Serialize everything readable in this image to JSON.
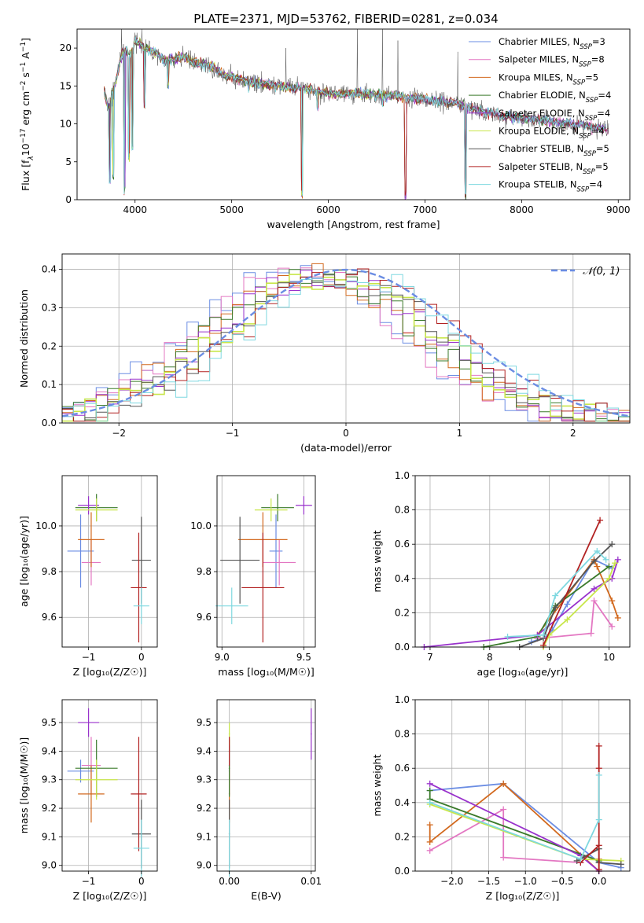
{
  "figure": {
    "title": "PLATE=2371, MJD=53762, FIBERID=0281, z=0.034"
  },
  "models": [
    {
      "label": "Chabrier MILES, N",
      "sub": "SSP",
      "eq": "=3",
      "color": "#6b8de3"
    },
    {
      "label": "Salpeter MILES, N",
      "sub": "SSP",
      "eq": "=8",
      "color": "#e377c2"
    },
    {
      "label": "Kroupa MILES, N",
      "sub": "SSP",
      "eq": "=5",
      "color": "#d2691e"
    },
    {
      "label": "Chabrier ELODIE, N",
      "sub": "SSP",
      "eq": "=4",
      "color": "#3a7a2a"
    },
    {
      "label": "Salpeter ELODIE, N",
      "sub": "SSP",
      "eq": "=4",
      "color": "#9932cc"
    },
    {
      "label": "Kroupa ELODIE, N",
      "sub": "SSP",
      "eq": "=4",
      "color": "#c8e64a"
    },
    {
      "label": "Chabrier STELIB, N",
      "sub": "SSP",
      "eq": "=5",
      "color": "#555555"
    },
    {
      "label": "Salpeter STELIB, N",
      "sub": "SSP",
      "eq": "=5",
      "color": "#b22222"
    },
    {
      "label": "Kroupa STELIB, N",
      "sub": "SSP",
      "eq": "=4",
      "color": "#7fd8e0"
    }
  ],
  "chart_data": [
    {
      "id": "spectrum",
      "type": "line",
      "title": "PLATE=2371, MJD=53762, FIBERID=0281, z=0.034",
      "xlabel": "wavelength [Angstrom, rest frame]",
      "ylabel_parts": [
        "Flux [f",
        "λ",
        "10",
        "−17",
        " erg cm",
        "−2",
        " s",
        "−1",
        " A",
        "−1",
        "]"
      ],
      "xlim": [
        3400,
        9120
      ],
      "ylim": [
        0,
        22.5
      ],
      "xticks": [
        4000,
        5000,
        6000,
        7000,
        8000,
        9000
      ],
      "yticks": [
        0,
        5,
        10,
        15,
        20
      ],
      "anchors": [
        [
          3680,
          14.5
        ],
        [
          3720,
          12.0
        ],
        [
          3800,
          15.5
        ],
        [
          3850,
          18.5
        ],
        [
          3900,
          20.0
        ],
        [
          3950,
          19.0
        ],
        [
          4000,
          21.0
        ],
        [
          4100,
          20.0
        ],
        [
          4200,
          19.5
        ],
        [
          4300,
          18.5
        ],
        [
          4400,
          18.5
        ],
        [
          4500,
          18.8
        ],
        [
          4600,
          18.3
        ],
        [
          4700,
          17.8
        ],
        [
          4800,
          17.5
        ],
        [
          4900,
          16.5
        ],
        [
          5000,
          16.2
        ],
        [
          5200,
          15.5
        ],
        [
          5500,
          15.0
        ],
        [
          5800,
          14.5
        ],
        [
          6000,
          14.0
        ],
        [
          6300,
          14.0
        ],
        [
          6600,
          13.8
        ],
        [
          7000,
          13.2
        ],
        [
          7300,
          12.8
        ],
        [
          7500,
          12.0
        ],
        [
          7800,
          11.0
        ],
        [
          8200,
          10.5
        ],
        [
          8500,
          10.0
        ],
        [
          8900,
          9.3
        ]
      ],
      "absorption_dips": [
        [
          3735,
          2.0
        ],
        [
          3775,
          2.5
        ],
        [
          3890,
          0.5
        ],
        [
          3935,
          5.0
        ],
        [
          3970,
          6.5
        ],
        [
          4102,
          12.0
        ],
        [
          4340,
          14.5
        ],
        [
          5175,
          14.0
        ],
        [
          5730,
          0.0
        ],
        [
          5890,
          11.5
        ],
        [
          6563,
          12.0
        ],
        [
          6800,
          0.0
        ],
        [
          7420,
          0.0
        ]
      ],
      "emission_spikes": [
        [
          3860,
          22.5
        ],
        [
          4070,
          22.5
        ],
        [
          5560,
          20.0
        ],
        [
          6300,
          22.5
        ],
        [
          6560,
          22.5
        ],
        [
          6720,
          21.0
        ],
        [
          7340,
          19.5
        ]
      ]
    },
    {
      "id": "residual-histogram",
      "type": "bar",
      "xlabel": "(data-model)/error",
      "ylabel": "Normed distribution",
      "xlim": [
        -2.5,
        2.5
      ],
      "ylim": [
        0,
        0.44
      ],
      "xticks": [
        -2,
        -1,
        0,
        1,
        2
      ],
      "yticks": [
        0.0,
        0.1,
        0.2,
        0.3,
        0.4
      ],
      "bin_width": 0.1,
      "reference": {
        "name": "𝒩(0, 1)",
        "mean": 0,
        "sigma": 1,
        "color": "#6b8de3"
      }
    },
    {
      "id": "age-vs-z",
      "type": "scatter",
      "xlabel": "Z [log₁₀(Z/Z☉)]",
      "ylabel": "age  [log₁₀(age/yr)]",
      "xlim": [
        -1.5,
        0.3
      ],
      "ylim": [
        9.47,
        10.22
      ],
      "xticks": [
        -1,
        0
      ],
      "yticks": [
        9.6,
        9.8,
        10.0
      ],
      "points": [
        {
          "x": -1.15,
          "y": 9.89,
          "xerr": 0.25,
          "yerr": 0.16,
          "model": 0
        },
        {
          "x": -0.95,
          "y": 9.84,
          "xerr": 0.18,
          "yerr": 0.1,
          "model": 1
        },
        {
          "x": -0.95,
          "y": 9.94,
          "xerr": 0.25,
          "yerr": 0.12,
          "model": 2
        },
        {
          "x": -0.85,
          "y": 10.08,
          "xerr": 0.4,
          "yerr": 0.06,
          "model": 3
        },
        {
          "x": -1.0,
          "y": 10.09,
          "xerr": 0.2,
          "yerr": 0.04,
          "model": 4
        },
        {
          "x": -0.85,
          "y": 10.07,
          "xerr": 0.4,
          "yerr": 0.05,
          "model": 5
        },
        {
          "x": 0.0,
          "y": 9.85,
          "xerr": 0.18,
          "yerr": 0.19,
          "model": 6
        },
        {
          "x": -0.05,
          "y": 9.73,
          "xerr": 0.15,
          "yerr": 0.24,
          "model": 7
        },
        {
          "x": 0.0,
          "y": 9.65,
          "xerr": 0.15,
          "yerr": 0.08,
          "model": 8
        }
      ]
    },
    {
      "id": "age-vs-mass",
      "type": "scatter",
      "xlabel": "mass [log₁₀(M/M☉)]",
      "ylabel": "",
      "xlim": [
        8.97,
        9.57
      ],
      "ylim": [
        9.47,
        10.22
      ],
      "xticks": [
        9.0,
        9.5
      ],
      "yticks": [
        9.6,
        9.8,
        10.0
      ],
      "points": [
        {
          "x": 9.33,
          "y": 9.89,
          "xerr": 0.04,
          "yerr": 0.16,
          "model": 0
        },
        {
          "x": 9.35,
          "y": 9.84,
          "xerr": 0.1,
          "yerr": 0.1,
          "model": 1
        },
        {
          "x": 9.25,
          "y": 9.94,
          "xerr": 0.15,
          "yerr": 0.12,
          "model": 2
        },
        {
          "x": 9.34,
          "y": 10.08,
          "xerr": 0.1,
          "yerr": 0.06,
          "model": 3
        },
        {
          "x": 9.5,
          "y": 10.09,
          "xerr": 0.05,
          "yerr": 0.04,
          "model": 4
        },
        {
          "x": 9.3,
          "y": 10.07,
          "xerr": 0.1,
          "yerr": 0.05,
          "model": 5
        },
        {
          "x": 9.11,
          "y": 9.85,
          "xerr": 0.12,
          "yerr": 0.19,
          "model": 6
        },
        {
          "x": 9.25,
          "y": 9.73,
          "xerr": 0.13,
          "yerr": 0.24,
          "model": 7
        },
        {
          "x": 9.06,
          "y": 9.65,
          "xerr": 0.1,
          "yerr": 0.08,
          "model": 8
        }
      ]
    },
    {
      "id": "weight-vs-age",
      "type": "line",
      "xlabel": "age  [log₁₀(age/yr)]",
      "ylabel": "mass weight",
      "xlim": [
        6.75,
        10.35
      ],
      "ylim": [
        0,
        1
      ],
      "xticks": [
        7,
        8,
        9,
        10
      ],
      "yticks": [
        0.0,
        0.2,
        0.4,
        0.6,
        0.8,
        1.0
      ],
      "series": [
        {
          "model": 0,
          "x": [
            8.7,
            8.95,
            9.05,
            9.3,
            9.75,
            10.05
          ],
          "y": [
            0.03,
            0.06,
            0.1,
            0.25,
            0.51,
            0.46
          ]
        },
        {
          "model": 1,
          "x": [
            8.8,
            9.7,
            9.75,
            10.05
          ],
          "y": [
            0.05,
            0.08,
            0.27,
            0.12
          ]
        },
        {
          "model": 2,
          "x": [
            8.8,
            9.75,
            9.8,
            10.05,
            10.15
          ],
          "y": [
            0.07,
            0.51,
            0.47,
            0.27,
            0.17
          ]
        },
        {
          "model": 3,
          "x": [
            7.9,
            8.8,
            9.1,
            10.0
          ],
          "y": [
            0.0,
            0.06,
            0.24,
            0.47
          ]
        },
        {
          "model": 4,
          "x": [
            6.9,
            8.8,
            9.75,
            10.05,
            10.15
          ],
          "y": [
            0.0,
            0.07,
            0.34,
            0.4,
            0.51
          ]
        },
        {
          "model": 5,
          "x": [
            8.9,
            9.0,
            9.3,
            10.0,
            10.1
          ],
          "y": [
            0.0,
            0.07,
            0.16,
            0.4,
            0.49
          ]
        },
        {
          "model": 6,
          "x": [
            8.5,
            8.9,
            9.1,
            9.75,
            10.05
          ],
          "y": [
            0.0,
            0.05,
            0.23,
            0.5,
            0.6
          ]
        },
        {
          "model": 7,
          "x": [
            8.9,
            9.85
          ],
          "y": [
            0.01,
            0.74
          ]
        },
        {
          "model": 8,
          "x": [
            8.3,
            8.9,
            9.1,
            9.8,
            9.95
          ],
          "y": [
            0.06,
            0.07,
            0.3,
            0.56,
            0.51
          ]
        }
      ]
    },
    {
      "id": "mass-vs-z",
      "type": "scatter",
      "xlabel": "Z [log₁₀(Z/Z☉)]",
      "ylabel": "mass [log₁₀(M/M☉)]",
      "xlim": [
        -1.5,
        0.3
      ],
      "ylim": [
        8.98,
        9.58
      ],
      "xticks": [
        -1,
        0
      ],
      "yticks": [
        9.0,
        9.1,
        9.2,
        9.3,
        9.4,
        9.5
      ],
      "points": [
        {
          "x": -1.15,
          "y": 9.33,
          "xerr": 0.25,
          "yerr": 0.04,
          "model": 0
        },
        {
          "x": -0.95,
          "y": 9.35,
          "xerr": 0.18,
          "yerr": 0.1,
          "model": 1
        },
        {
          "x": -0.95,
          "y": 9.25,
          "xerr": 0.25,
          "yerr": 0.1,
          "model": 2
        },
        {
          "x": -0.85,
          "y": 9.34,
          "xerr": 0.4,
          "yerr": 0.1,
          "model": 3
        },
        {
          "x": -1.0,
          "y": 9.5,
          "xerr": 0.2,
          "yerr": 0.05,
          "model": 4
        },
        {
          "x": -0.85,
          "y": 9.3,
          "xerr": 0.4,
          "yerr": 0.07,
          "model": 5
        },
        {
          "x": 0.0,
          "y": 9.11,
          "xerr": 0.18,
          "yerr": 0.12,
          "model": 6
        },
        {
          "x": -0.05,
          "y": 9.25,
          "xerr": 0.15,
          "yerr": 0.2,
          "model": 7
        },
        {
          "x": 0.0,
          "y": 9.06,
          "xerr": 0.15,
          "yerr": 0.1,
          "model": 8
        }
      ]
    },
    {
      "id": "mass-vs-ebv",
      "type": "scatter",
      "xlabel": "E(B-V)",
      "ylabel": "",
      "xlim": [
        -0.0015,
        0.0105
      ],
      "ylim": [
        8.98,
        9.58
      ],
      "xticks": [
        0.0,
        0.01
      ],
      "yticks": [
        9.0,
        9.1,
        9.2,
        9.3,
        9.4,
        9.5
      ],
      "points": [
        {
          "x": 0.0,
          "y": 9.33,
          "xerr": 0,
          "yerr": 0.04,
          "model": 0
        },
        {
          "x": 0.0,
          "y": 9.35,
          "xerr": 0,
          "yerr": 0.1,
          "model": 1
        },
        {
          "x": 0.0,
          "y": 9.25,
          "xerr": 0,
          "yerr": 0.1,
          "model": 2
        },
        {
          "x": 0.0,
          "y": 9.34,
          "xerr": 0,
          "yerr": 0.1,
          "model": 3
        },
        {
          "x": 0.01,
          "y": 9.46,
          "xerr": 0,
          "yerr": 0.09,
          "model": 4
        },
        {
          "x": 0.0,
          "y": 9.46,
          "xerr": 0,
          "yerr": 0.04,
          "model": 5
        },
        {
          "x": 0.0,
          "y": 9.11,
          "xerr": 0,
          "yerr": 0.12,
          "model": 6
        },
        {
          "x": 0.0,
          "y": 9.4,
          "xerr": 0,
          "yerr": 0.05,
          "model": 7
        },
        {
          "x": 0.0,
          "y": 9.06,
          "xerr": 0,
          "yerr": 0.1,
          "model": 8
        }
      ]
    },
    {
      "id": "weight-vs-z",
      "type": "line",
      "xlabel": "Z [log₁₀(Z/Z☉)]",
      "ylabel": "mass weight",
      "xlim": [
        -2.5,
        0.42
      ],
      "ylim": [
        0,
        1
      ],
      "xticks": [
        -2.0,
        -1.5,
        -1.0,
        -0.5,
        0.0
      ],
      "yticks": [
        0.0,
        0.2,
        0.4,
        0.6,
        0.8,
        1.0
      ],
      "series": [
        {
          "model": 0,
          "x": [
            -2.3,
            -1.3,
            0.0,
            0.3
          ],
          "y": [
            0.47,
            0.51,
            0.05,
            0.02
          ]
        },
        {
          "model": 1,
          "x": [
            -2.3,
            -1.3,
            -1.3,
            -0.25
          ],
          "y": [
            0.12,
            0.36,
            0.08,
            0.05
          ]
        },
        {
          "model": 2,
          "x": [
            -2.3,
            -2.3,
            -1.3,
            0.0,
            0.0
          ],
          "y": [
            0.27,
            0.17,
            0.51,
            0.0,
            0.07
          ]
        },
        {
          "model": 3,
          "x": [
            -2.3,
            -2.3,
            0.0,
            0.0
          ],
          "y": [
            0.47,
            0.42,
            0.06,
            0.05
          ]
        },
        {
          "model": 4,
          "x": [
            -2.3,
            -0.25,
            0.0
          ],
          "y": [
            0.51,
            0.09,
            0.0
          ]
        },
        {
          "model": 5,
          "x": [
            -2.3,
            -0.25,
            0.3
          ],
          "y": [
            0.39,
            0.07,
            0.06
          ]
        },
        {
          "model": 6,
          "x": [
            -0.3,
            0.0,
            0.0,
            0.3
          ],
          "y": [
            0.06,
            0.13,
            0.05,
            0.04
          ]
        },
        {
          "model": 7,
          "x": [
            -0.25,
            0.0,
            0.0,
            0.0,
            0.0
          ],
          "y": [
            0.05,
            0.15,
            0.6,
            0.73,
            0.01
          ]
        },
        {
          "model": 8,
          "x": [
            -2.3,
            -0.25,
            0.0,
            0.0
          ],
          "y": [
            0.4,
            0.07,
            0.3,
            0.56
          ]
        }
      ]
    }
  ]
}
